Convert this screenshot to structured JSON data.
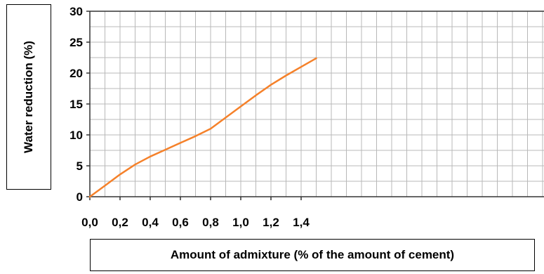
{
  "chart_data": {
    "type": "line",
    "title": "",
    "xlabel": "Amount of admixture (% of the amount of cement)",
    "ylabel": "Water reduction (%)",
    "xlim": [
      0,
      1.5
    ],
    "ylim": [
      0,
      30
    ],
    "x_ticks": [
      "0,0",
      "0,2",
      "0,4",
      "0,6",
      "0,8",
      "1,0",
      "1,2",
      "1,4"
    ],
    "y_ticks": [
      "0",
      "5",
      "10",
      "15",
      "20",
      "25",
      "30"
    ],
    "grid": true,
    "series_color": "#f5812a",
    "series": [
      {
        "x": [
          0.0,
          0.1,
          0.2,
          0.3,
          0.4,
          0.5,
          0.6,
          0.7,
          0.8,
          0.9,
          1.0,
          1.1,
          1.2,
          1.3,
          1.4,
          1.5
        ],
        "values": [
          0.0,
          1.8,
          3.6,
          5.2,
          6.5,
          7.6,
          8.7,
          9.8,
          11.0,
          12.8,
          14.6,
          16.4,
          18.1,
          19.6,
          21.0,
          22.4
        ]
      }
    ]
  }
}
